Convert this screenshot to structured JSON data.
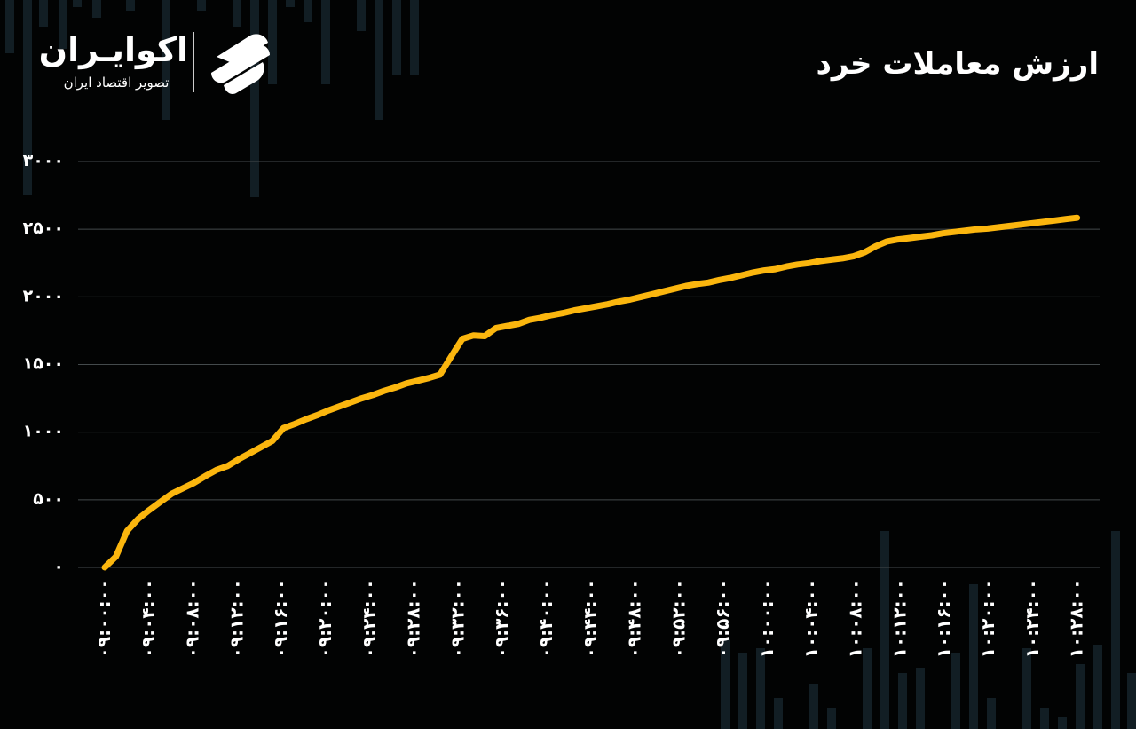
{
  "brand": {
    "name": "اکوایـران",
    "tagline": "تصویر اقتصاد ایران",
    "icon": "ecoiran-logo-icon"
  },
  "colors": {
    "background": "#020303",
    "line": "#fbb60e",
    "grid": "#444a4c",
    "text": "#ffffff",
    "bg_bars": "#16262d"
  },
  "chart_data": {
    "type": "line",
    "title": "ارزش معاملات خرد",
    "xlabel": "",
    "ylabel": "",
    "ylim": [
      0,
      3000
    ],
    "yticks": [
      0,
      500,
      1000,
      1500,
      2000,
      2500,
      3000
    ],
    "ytick_labels": [
      "۰",
      "۵۰۰",
      "۱۰۰۰",
      "۱۵۰۰",
      "۲۰۰۰",
      "۲۵۰۰",
      "۳۰۰۰"
    ],
    "grid": true,
    "legend": "none",
    "xtick_labels": [
      "۰۹:۰۰:۰۰",
      "۰۹:۰۴:۰۰",
      "۰۹:۰۸:۰۰",
      "۰۹:۱۲:۰۰",
      "۰۹:۱۶:۰۰",
      "۰۹:۲۰:۰۰",
      "۰۹:۲۴:۰۰",
      "۰۹:۲۸:۰۰",
      "۰۹:۳۲:۰۰",
      "۰۹:۳۶:۰۰",
      "۰۹:۴۰:۰۰",
      "۰۹:۴۴:۰۰",
      "۰۹:۴۸:۰۰",
      "۰۹:۵۲:۰۰",
      "۰۹:۵۶:۰۰",
      "۱۰:۰۰:۰۰",
      "۱۰:۰۴:۰۰",
      "۱۰:۰۸:۰۰",
      "۱۰:۱۲:۰۰",
      "۱۰:۱۶:۰۰",
      "۱۰:۲۰:۰۰",
      "۱۰:۲۴:۰۰",
      "۱۰:۲۸:۰۰"
    ],
    "series": [
      {
        "values": [
          0,
          80,
          270,
          360,
          425,
          485,
          545,
          585,
          625,
          675,
          720,
          750,
          800,
          845,
          890,
          935,
          1030,
          1060,
          1095,
          1125,
          1160,
          1190,
          1220,
          1250,
          1275,
          1305,
          1330,
          1360,
          1380,
          1400,
          1425,
          1560,
          1690,
          1715,
          1710,
          1770,
          1785,
          1800,
          1830,
          1845,
          1865,
          1880,
          1900,
          1915,
          1930,
          1945,
          1965,
          1980,
          2000,
          2020,
          2040,
          2060,
          2080,
          2095,
          2105,
          2125,
          2140,
          2160,
          2180,
          2195,
          2205,
          2225,
          2240,
          2250,
          2265,
          2275,
          2285,
          2300,
          2330,
          2375,
          2410,
          2425,
          2435,
          2445,
          2455,
          2470,
          2480,
          2490,
          2500,
          2505,
          2515,
          2525,
          2535,
          2545,
          2555,
          2565,
          2575,
          2585
        ]
      }
    ]
  }
}
